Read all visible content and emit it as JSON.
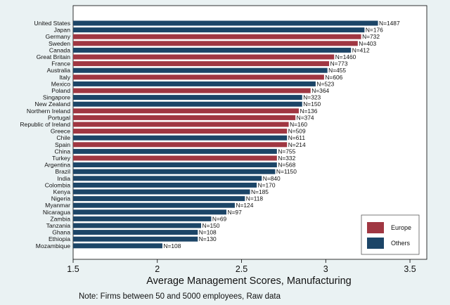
{
  "chart_data": {
    "type": "bar",
    "orientation": "horizontal",
    "xlabel": "Average Management Scores, Manufacturing",
    "note": "Note: Firms between 50 and 5000 employees, Raw data",
    "xlim": [
      1.5,
      3.6
    ],
    "xticks": [
      "1.5",
      "2",
      "2.5",
      "3",
      "3.5"
    ],
    "grid": false,
    "legend_placement": "bottom-right",
    "groups": [
      {
        "name": "Europe",
        "color": "#a03742"
      },
      {
        "name": "Others",
        "color": "#1c4567"
      }
    ],
    "categories": [
      "United States",
      "Japan",
      "Germany",
      "Sweden",
      "Canada",
      "Great Britain",
      "France",
      "Australia",
      "Italy",
      "Mexico",
      "Poland",
      "Singapore",
      "New Zealand",
      "Northern Ireland",
      "Portugal",
      "Republic of Ireland",
      "Greece",
      "Chile",
      "Spain",
      "China",
      "Turkey",
      "Argentina",
      "Brazil",
      "India",
      "Colombia",
      "Kenya",
      "Nigeria",
      "Myanmar",
      "Nicaragua",
      "Zambia",
      "Tanzania",
      "Ghana",
      "Ethiopia",
      "Mozambique"
    ],
    "values": [
      3.31,
      3.23,
      3.21,
      3.19,
      3.15,
      3.05,
      3.02,
      3.01,
      2.99,
      2.94,
      2.91,
      2.86,
      2.86,
      2.84,
      2.82,
      2.78,
      2.77,
      2.77,
      2.77,
      2.71,
      2.71,
      2.71,
      2.7,
      2.62,
      2.59,
      2.55,
      2.52,
      2.46,
      2.41,
      2.32,
      2.26,
      2.24,
      2.24,
      2.03
    ],
    "n_labels": [
      "N=1487",
      "N=176",
      "N=732",
      "N=403",
      "N=412",
      "N=1460",
      "N=773",
      "N=455",
      "N=606",
      "N=523",
      "N=364",
      "N=323",
      "N=150",
      "N=136",
      "N=374",
      "N=160",
      "N=509",
      "N=611",
      "N=214",
      "N=755",
      "N=332",
      "N=568",
      "N=1150",
      "N=840",
      "N=170",
      "N=185",
      "N=118",
      "N=124",
      "N=97",
      "N=69",
      "N=150",
      "N=108",
      "N=130",
      "N=108"
    ],
    "group": [
      "Others",
      "Others",
      "Europe",
      "Europe",
      "Others",
      "Europe",
      "Europe",
      "Others",
      "Europe",
      "Others",
      "Europe",
      "Others",
      "Others",
      "Europe",
      "Europe",
      "Europe",
      "Europe",
      "Others",
      "Europe",
      "Others",
      "Europe",
      "Others",
      "Others",
      "Others",
      "Others",
      "Others",
      "Others",
      "Others",
      "Others",
      "Others",
      "Others",
      "Others",
      "Others",
      "Others"
    ]
  }
}
